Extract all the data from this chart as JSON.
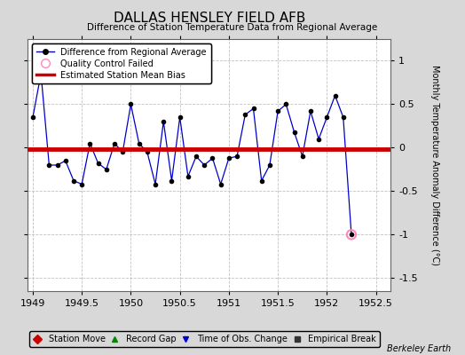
{
  "title": "DALLAS HENSLEY FIELD AFB",
  "subtitle": "Difference of Station Temperature Data from Regional Average",
  "ylabel": "Monthly Temperature Anomaly Difference (°C)",
  "xlim": [
    1948.95,
    1952.65
  ],
  "ylim": [
    -1.65,
    1.25
  ],
  "yticks": [
    -1.5,
    -1.0,
    -0.5,
    0.0,
    0.5,
    1.0
  ],
  "xticks": [
    1949.0,
    1949.5,
    1950.0,
    1950.5,
    1951.0,
    1951.5,
    1952.0,
    1952.5
  ],
  "xtick_labels": [
    "1949",
    "1949.5",
    "1950",
    "1950.5",
    "1951",
    "1951.5",
    "1952",
    "1952.5"
  ],
  "ytick_labels": [
    "-1.5",
    "-1",
    "-0.5",
    "0",
    "0.5",
    "1"
  ],
  "bias_value": -0.02,
  "background_color": "#d8d8d8",
  "plot_bg_color": "#ffffff",
  "line_color": "#0000cc",
  "marker_color": "#000000",
  "bias_color": "#cc0000",
  "qc_color": "#ff88bb",
  "watermark": "Berkeley Earth",
  "x_values": [
    1949.0,
    1949.0833,
    1949.1667,
    1949.25,
    1949.3333,
    1949.4167,
    1949.5,
    1949.5833,
    1949.6667,
    1949.75,
    1949.8333,
    1949.9167,
    1950.0,
    1950.0833,
    1950.1667,
    1950.25,
    1950.3333,
    1950.4167,
    1950.5,
    1950.5833,
    1950.6667,
    1950.75,
    1950.8333,
    1950.9167,
    1951.0,
    1951.0833,
    1951.1667,
    1951.25,
    1951.3333,
    1951.4167,
    1951.5,
    1951.5833,
    1951.6667,
    1951.75,
    1951.8333,
    1951.9167,
    1952.0,
    1952.0833,
    1952.1667,
    1952.25
  ],
  "y_values": [
    0.35,
    0.85,
    -0.2,
    -0.2,
    -0.15,
    -0.38,
    -0.42,
    0.05,
    -0.18,
    -0.25,
    0.05,
    -0.05,
    0.5,
    0.05,
    -0.05,
    -0.42,
    0.3,
    -0.38,
    0.35,
    -0.33,
    -0.1,
    -0.2,
    -0.12,
    -0.42,
    -0.12,
    -0.1,
    0.38,
    0.45,
    -0.38,
    -0.2,
    0.42,
    0.5,
    0.18,
    -0.1,
    0.42,
    0.1,
    0.35,
    0.6,
    0.35,
    -1.0
  ],
  "qc_failed_x": [
    1952.25
  ],
  "qc_failed_y": [
    -1.0
  ],
  "legend_line_label": "Difference from Regional Average",
  "legend_qc_label": "Quality Control Failed",
  "legend_bias_label": "Estimated Station Mean Bias",
  "bottom_legend": {
    "station_move": {
      "color": "#cc0000",
      "marker": "D",
      "label": "Station Move"
    },
    "record_gap": {
      "color": "#008800",
      "marker": "^",
      "label": "Record Gap"
    },
    "time_obs": {
      "color": "#0000cc",
      "marker": "v",
      "label": "Time of Obs. Change"
    },
    "empirical_break": {
      "color": "#333333",
      "marker": "s",
      "label": "Empirical Break"
    }
  }
}
